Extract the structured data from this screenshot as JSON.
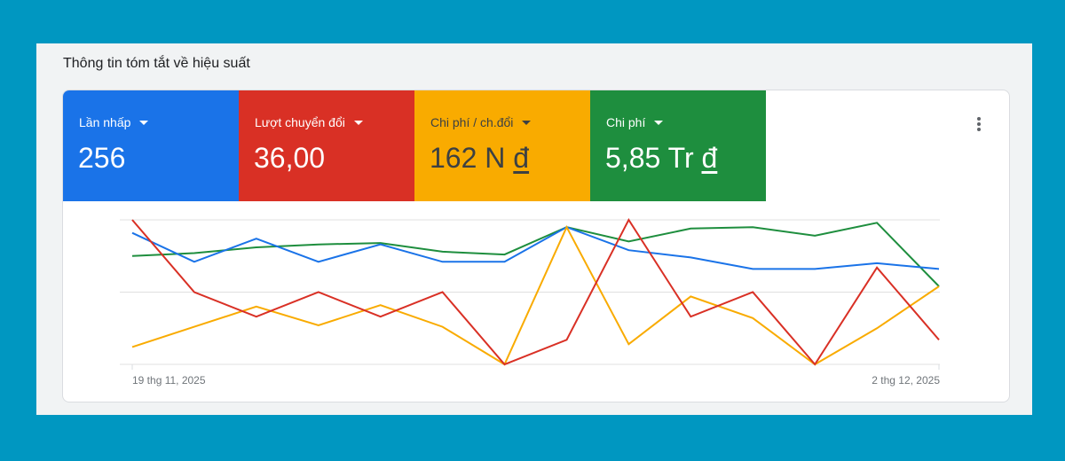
{
  "panel": {
    "title": "Thông tin tóm tắt về hiệu suất"
  },
  "metrics": [
    {
      "label": "Lần nhấp",
      "value": "256",
      "suffix": "",
      "color": "#1a73e8",
      "text": "light"
    },
    {
      "label": "Lượt chuyển đổi",
      "value": "36,00",
      "suffix": "",
      "color": "#d93025",
      "text": "light"
    },
    {
      "label": "Chi phí / ch.đổi",
      "value": "162 N ",
      "suffix": "đ",
      "color": "#f9ab00",
      "text": "dark"
    },
    {
      "label": "Chi phí",
      "value": "5,85 Tr ",
      "suffix": "đ",
      "color": "#1e8e3e",
      "text": "light"
    }
  ],
  "menu": {
    "icon": "more-vert-icon"
  },
  "chart_data": {
    "type": "line",
    "title": "",
    "xlabel": "",
    "ylabel": "",
    "x_tick_labels": [
      "19 thg 11, 2025",
      "2 thg 12, 2025"
    ],
    "x": [
      "19 thg 11",
      "20 thg 11",
      "21 thg 11",
      "22 thg 11",
      "23 thg 11",
      "24 thg 11",
      "25 thg 11",
      "26 thg 11",
      "27 thg 11",
      "28 thg 11",
      "29 thg 11",
      "30 thg 11",
      "1 thg 12",
      "2 thg 12"
    ],
    "grid": true,
    "ylim": [
      0,
      100
    ],
    "note": "Values normalized per series (0 = bottom gridline, 100 = top gridline); each series uses its own hidden scale",
    "series": [
      {
        "name": "Lần nhấp",
        "color": "#1a73e8",
        "values": [
          91,
          71,
          87,
          71,
          83,
          71,
          71,
          95,
          79,
          74,
          66,
          66,
          70,
          66
        ]
      },
      {
        "name": "Lượt chuyển đổi",
        "color": "#d93025",
        "values": [
          100,
          50,
          33,
          50,
          33,
          50,
          0,
          17,
          100,
          33,
          50,
          0,
          67,
          17
        ]
      },
      {
        "name": "Chi phí / ch.đổi",
        "color": "#f9ab00",
        "values": [
          12,
          26,
          40,
          27,
          41,
          26,
          0,
          95,
          14,
          47,
          32,
          0,
          25,
          54
        ]
      },
      {
        "name": "Chi phí",
        "color": "#1e8e3e",
        "values": [
          75,
          77,
          81,
          83,
          84,
          78,
          76,
          95,
          85,
          94,
          95,
          89,
          98,
          54
        ]
      }
    ]
  }
}
